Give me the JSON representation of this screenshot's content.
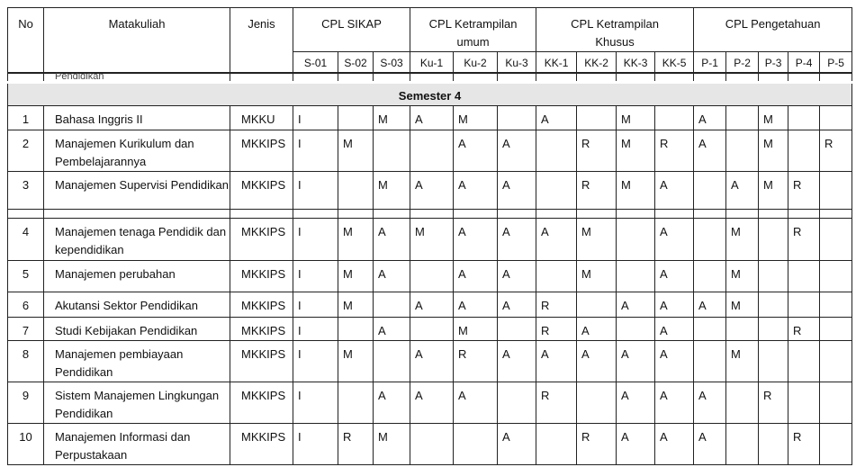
{
  "header": {
    "no": "No",
    "matakuliah": "Matakuliah",
    "jenis": "Jenis",
    "groups": [
      "CPL SIKAP",
      "CPL Ketrampilan umum",
      "CPL Ketrampilan Khusus",
      "CPL Pengetahuan"
    ],
    "codes": [
      "S-01",
      "S-02",
      "S-03",
      "Ku-1",
      "Ku-2",
      "Ku-3",
      "KK-1",
      "KK-2",
      "KK-3",
      "KK-5",
      "P-1",
      "P-2",
      "P-3",
      "P-4",
      "P-5"
    ]
  },
  "partial_text": "Pendidikan",
  "semester": "Semester 4",
  "rows": [
    {
      "no": "1",
      "name": "Bahasa Inggris II",
      "jenis": "MKKU",
      "v": [
        "I",
        "",
        "M",
        "A",
        "M",
        "",
        "A",
        "",
        "M",
        "",
        "A",
        "",
        "M",
        "",
        ""
      ]
    },
    {
      "no": "2",
      "name": "Manajemen Kurikulum dan Pembelajarannya",
      "jenis": "MKKIPS",
      "v": [
        "I",
        "M",
        "",
        "",
        "A",
        "A",
        "",
        "R",
        "M",
        "R",
        "A",
        "",
        "M",
        "",
        "R"
      ]
    },
    {
      "no": "3",
      "name": "Manajemen Supervisi Pendidikan",
      "jenis": "MKKIPS",
      "v": [
        "I",
        "",
        "M",
        "A",
        "A",
        "A",
        "",
        "R",
        "M",
        "A",
        "",
        "A",
        "M",
        "R",
        ""
      ]
    },
    {
      "no": "4",
      "name": "Manajemen tenaga Pendidik dan kependidikan",
      "jenis": "MKKIPS",
      "v": [
        "I",
        "M",
        "A",
        "M",
        "A",
        "A",
        "A",
        "M",
        "",
        "A",
        "",
        "M",
        "",
        "R",
        ""
      ]
    },
    {
      "no": "5",
      "name": "Manajemen perubahan",
      "jenis": "MKKIPS",
      "v": [
        "I",
        "M",
        "A",
        "",
        "A",
        "A",
        "",
        "M",
        "",
        "A",
        "",
        "M",
        "",
        "",
        ""
      ]
    },
    {
      "no": "6",
      "name": "Akutansi Sektor Pendidikan",
      "jenis": "MKKIPS",
      "v": [
        "I",
        "M",
        "",
        "A",
        "A",
        "A",
        "R",
        "",
        "A",
        "A",
        "A",
        "M",
        "",
        "",
        ""
      ]
    },
    {
      "no": "7",
      "name": "Studi Kebijakan Pendidikan",
      "jenis": "MKKIPS",
      "v": [
        "I",
        "",
        "A",
        "",
        "M",
        "",
        "R",
        "A",
        "",
        "A",
        "",
        "",
        "",
        "R",
        ""
      ]
    },
    {
      "no": "8",
      "name": "Manajemen pembiayaan Pendidikan",
      "jenis": "MKKIPS",
      "v": [
        "I",
        "M",
        "",
        "A",
        "R",
        "A",
        "A",
        "A",
        "A",
        "A",
        "",
        "M",
        "",
        "",
        ""
      ]
    },
    {
      "no": "9",
      "name": "Sistem Manajemen Lingkungan Pendidikan",
      "jenis": "MKKIPS",
      "v": [
        "I",
        "",
        "A",
        "A",
        "A",
        "",
        "R",
        "",
        "A",
        "A",
        "A",
        "",
        "R",
        "",
        ""
      ]
    },
    {
      "no": "10",
      "name": "Manajemen Informasi dan Perpustakaan",
      "jenis": "MKKIPS",
      "v": [
        "I",
        "R",
        "M",
        "",
        "",
        "A",
        "",
        "R",
        "A",
        "A",
        "A",
        "",
        "",
        "R",
        ""
      ]
    }
  ]
}
